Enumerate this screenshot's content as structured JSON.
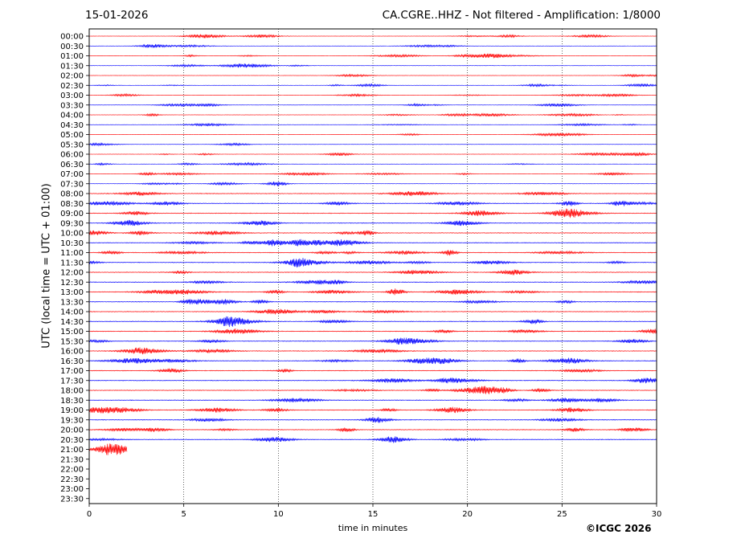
{
  "header": {
    "date": "15-01-2026",
    "station_info": "CA.CGRE..HHZ - Not filtered - Amplification: 1/8000"
  },
  "footer": {
    "copyright": "©ICGC 2026"
  },
  "colors": {
    "trace_a": "#ff0000",
    "trace_b": "#0000ff",
    "grid": "#000000"
  },
  "chart_data": {
    "type": "line",
    "title": "CA.CGRE..HHZ - Not filtered - Amplification: 1/8000",
    "xlabel": "time in minutes",
    "ylabel": "UTC (local time = UTC + 01:00)",
    "xlim": [
      0,
      30
    ],
    "xticks": [
      0,
      5,
      10,
      15,
      20,
      25,
      30
    ],
    "vertical_gridlines_at": [
      5,
      10,
      15,
      20,
      25
    ],
    "grid_style": "dotted",
    "row_labels": [
      "00:00",
      "00:30",
      "01:00",
      "01:30",
      "02:00",
      "02:30",
      "03:00",
      "03:30",
      "04:00",
      "04:30",
      "05:00",
      "05:30",
      "06:00",
      "06:30",
      "07:00",
      "07:30",
      "08:00",
      "08:30",
      "09:00",
      "09:30",
      "10:00",
      "10:30",
      "11:00",
      "11:30",
      "12:00",
      "12:30",
      "13:00",
      "13:30",
      "14:00",
      "14:30",
      "15:00",
      "15:30",
      "16:00",
      "16:30",
      "17:00",
      "17:30",
      "18:00",
      "18:30",
      "19:00",
      "19:30",
      "20:00",
      "20:30",
      "21:00",
      "21:30",
      "22:00",
      "22:30",
      "23:00",
      "23:30"
    ],
    "traces_recorded_rows": 43,
    "last_trace_end_minutes": 2,
    "trace_color_alternation": [
      "red",
      "blue"
    ]
  }
}
